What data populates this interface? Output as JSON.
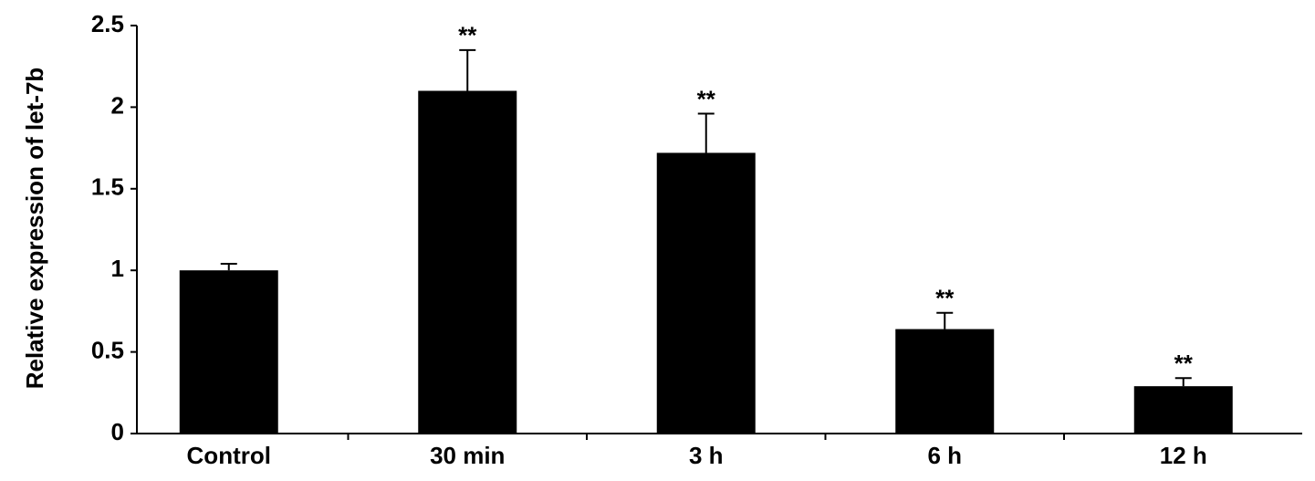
{
  "chart_data": {
    "type": "bar",
    "y_label": "Relative expression of let-7b",
    "categories": [
      "Control",
      "30 min",
      "3 h",
      "6 h",
      "12 h"
    ],
    "values": [
      1.0,
      2.1,
      1.72,
      0.64,
      0.29
    ],
    "errors": [
      0.04,
      0.25,
      0.24,
      0.1,
      0.05
    ],
    "annotations": [
      null,
      "**",
      "**",
      "**",
      "**"
    ],
    "color": "#000000",
    "ylim": [
      0,
      2.5
    ],
    "yticks": [
      0,
      0.5,
      1,
      1.5,
      2,
      2.5
    ]
  }
}
